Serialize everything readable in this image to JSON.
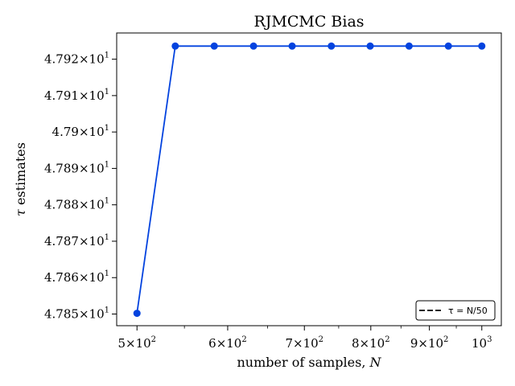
{
  "chart_data": {
    "type": "line",
    "title": "RJMCMC Bias",
    "xlabel_text": "number of samples, ",
    "xlabel_var": "N",
    "ylabel_sym": "τ",
    "ylabel_text": " estimates",
    "x_scale": "log",
    "x": [
      500,
      540,
      584,
      632,
      683,
      739,
      799,
      864,
      935,
      1000
    ],
    "series": [
      {
        "values": [
          47.8502,
          47.9236,
          47.9236,
          47.9236,
          47.9236,
          47.9236,
          47.9236,
          47.9236,
          47.9236,
          47.9236
        ],
        "color": "#0343df"
      }
    ],
    "xlim": [
      480,
      1040
    ],
    "ylim": [
      47.8468,
      47.9272
    ],
    "x_ticks": [
      {
        "value": 500,
        "mant": "5",
        "exp": "2",
        "times": true
      },
      {
        "value": 600,
        "mant": "6",
        "exp": "2",
        "times": true
      },
      {
        "value": 700,
        "mant": "7",
        "exp": "2",
        "times": true
      },
      {
        "value": 800,
        "mant": "8",
        "exp": "2",
        "times": true
      },
      {
        "value": 900,
        "mant": "9",
        "exp": "2",
        "times": true
      },
      {
        "value": 1000,
        "mant": "10",
        "exp": "3",
        "times": false
      }
    ],
    "y_ticks": [
      {
        "value": 47.85,
        "mant": "4.785",
        "exp": "1"
      },
      {
        "value": 47.86,
        "mant": "4.786",
        "exp": "1"
      },
      {
        "value": 47.87,
        "mant": "4.787",
        "exp": "1"
      },
      {
        "value": 47.88,
        "mant": "4.788",
        "exp": "1"
      },
      {
        "value": 47.89,
        "mant": "4.789",
        "exp": "1"
      },
      {
        "value": 47.9,
        "mant": "4.79",
        "exp": "1"
      },
      {
        "value": 47.91,
        "mant": "4.791",
        "exp": "1"
      },
      {
        "value": 47.92,
        "mant": "4.792",
        "exp": "1"
      }
    ],
    "legend": {
      "placement": "lower-right",
      "entries": [
        {
          "label": "τ = N/50",
          "color": "#000000",
          "style": "dashed"
        }
      ]
    },
    "grid": false
  }
}
